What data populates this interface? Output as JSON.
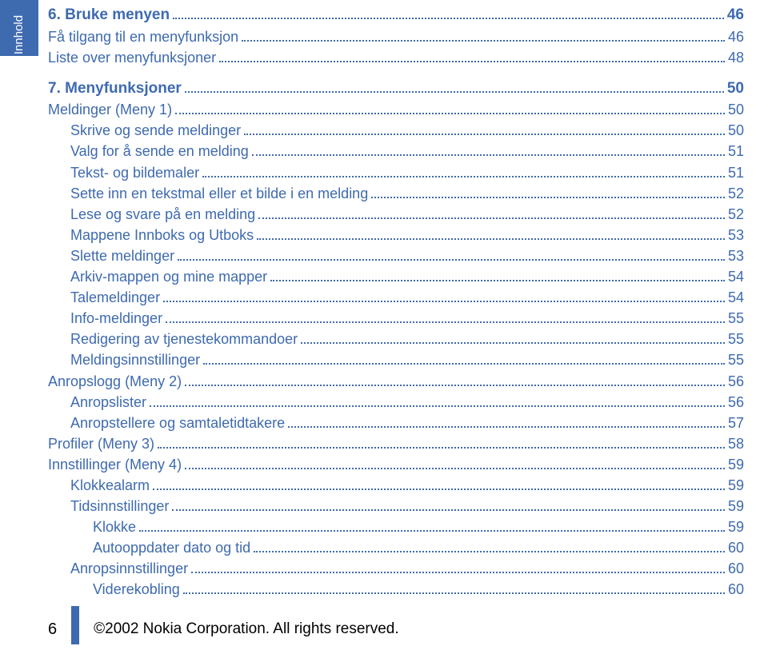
{
  "sideTab": "Innhold",
  "entries": [
    {
      "kind": "heading",
      "indent": 0,
      "label": "6. Bruke menyen",
      "page": "46"
    },
    {
      "kind": "item",
      "indent": 0,
      "label": "Få tilgang til en menyfunksjon",
      "page": "46"
    },
    {
      "kind": "item",
      "indent": 0,
      "label": "Liste over menyfunksjoner",
      "page": "48"
    },
    {
      "kind": "spacer"
    },
    {
      "kind": "heading",
      "indent": 0,
      "label": "7. Menyfunksjoner",
      "page": "50"
    },
    {
      "kind": "item",
      "indent": 0,
      "label": "Meldinger (Meny 1)",
      "page": "50"
    },
    {
      "kind": "item",
      "indent": 1,
      "label": "Skrive og sende meldinger",
      "page": "50"
    },
    {
      "kind": "item",
      "indent": 1,
      "label": "Valg for å sende en melding",
      "page": "51"
    },
    {
      "kind": "item",
      "indent": 1,
      "label": "Tekst- og bildemaler",
      "page": "51"
    },
    {
      "kind": "item",
      "indent": 1,
      "label": "Sette inn en tekstmal eller et bilde i en melding",
      "page": "52"
    },
    {
      "kind": "item",
      "indent": 1,
      "label": "Lese og svare på en melding",
      "page": "52"
    },
    {
      "kind": "item",
      "indent": 1,
      "label": "Mappene Innboks og Utboks",
      "page": "53"
    },
    {
      "kind": "item",
      "indent": 1,
      "label": "Slette meldinger",
      "page": "53"
    },
    {
      "kind": "item",
      "indent": 1,
      "label": "Arkiv-mappen og mine mapper",
      "page": "54"
    },
    {
      "kind": "item",
      "indent": 1,
      "label": "Talemeldinger",
      "page": "54"
    },
    {
      "kind": "item",
      "indent": 1,
      "label": "Info-meldinger",
      "page": "55"
    },
    {
      "kind": "item",
      "indent": 1,
      "label": "Redigering av tjenestekommandoer",
      "page": "55"
    },
    {
      "kind": "item",
      "indent": 1,
      "label": "Meldingsinnstillinger",
      "page": "55"
    },
    {
      "kind": "item",
      "indent": 0,
      "label": "Anropslogg (Meny 2)",
      "page": "56"
    },
    {
      "kind": "item",
      "indent": 1,
      "label": "Anropslister",
      "page": "56"
    },
    {
      "kind": "item",
      "indent": 1,
      "label": "Anropstellere og samtaletidtakere",
      "page": "57"
    },
    {
      "kind": "item",
      "indent": 0,
      "label": "Profiler (Meny 3)",
      "page": "58"
    },
    {
      "kind": "item",
      "indent": 0,
      "label": "Innstillinger (Meny 4)",
      "page": "59"
    },
    {
      "kind": "item",
      "indent": 1,
      "label": "Klokkealarm",
      "page": "59"
    },
    {
      "kind": "item",
      "indent": 1,
      "label": "Tidsinnstillinger",
      "page": "59"
    },
    {
      "kind": "item",
      "indent": 2,
      "label": "Klokke",
      "page": "59"
    },
    {
      "kind": "item",
      "indent": 2,
      "label": "Autooppdater dato og tid",
      "page": "60"
    },
    {
      "kind": "item",
      "indent": 1,
      "label": "Anropsinnstillinger",
      "page": "60"
    },
    {
      "kind": "item",
      "indent": 2,
      "label": "Viderekobling",
      "page": "60"
    }
  ],
  "footer": {
    "pageNumber": "6",
    "copyright": "©2002 Nokia Corporation. All rights reserved."
  },
  "colors": {
    "accent": "#3E6AB0",
    "text": "#000000",
    "background": "#ffffff"
  }
}
